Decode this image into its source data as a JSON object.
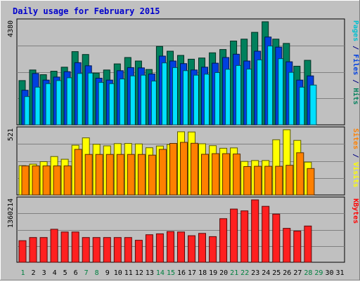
{
  "chart_data": {
    "type": "bar",
    "title": "Daily usage for February 2015",
    "days": [
      "1",
      "2",
      "3",
      "4",
      "5",
      "6",
      "7",
      "8",
      "9",
      "10",
      "11",
      "12",
      "13",
      "14",
      "15",
      "16",
      "17",
      "18",
      "19",
      "20",
      "21",
      "22",
      "23",
      "24",
      "25",
      "26",
      "27",
      "28",
      "29",
      "30",
      "31"
    ],
    "weekend_days": [
      "1",
      "7",
      "8",
      "14",
      "15",
      "21",
      "22",
      "28",
      "29"
    ],
    "panels": [
      {
        "id": "hits",
        "max_label": "4380",
        "ylim": [
          0,
          4380
        ],
        "axis_labels": [
          {
            "text": "Pages",
            "color": "#00c0d0"
          },
          {
            "text": " / ",
            "color": "#000080"
          },
          {
            "text": "Files",
            "color": "#0040e0"
          },
          {
            "text": " / ",
            "color": "#000080"
          },
          {
            "text": "Hits",
            "color": "#00805c"
          }
        ],
        "series": [
          {
            "name": "Hits",
            "color": "#00805c",
            "values": [
              1880,
              2330,
              2130,
              2280,
              2450,
              3110,
              2990,
              2200,
              2330,
              2590,
              2860,
              2710,
              2350,
              3330,
              3130,
              2950,
              2790,
              2840,
              3060,
              3200,
              3560,
              3640,
              3930,
              4380,
              3640,
              3460,
              2490,
              2740,
              null,
              null,
              null
            ]
          },
          {
            "name": "Files",
            "color": "#0040e0",
            "values": [
              1470,
              2180,
              1900,
              2030,
              2260,
              2640,
              2510,
              1980,
              1900,
              2300,
              2430,
              2420,
              2160,
              2920,
              2710,
              2600,
              2330,
              2450,
              2620,
              2860,
              3000,
              2710,
              3130,
              3730,
              3300,
              2680,
              1900,
              2080,
              null,
              null,
              null
            ]
          },
          {
            "name": "Pages",
            "color": "#00e0ff",
            "values": [
              1200,
              1600,
              1750,
              1880,
              2000,
              2180,
              2200,
              1800,
              1750,
              1950,
              2080,
              2110,
              1860,
              2630,
              2430,
              2300,
              2110,
              2150,
              2220,
              2360,
              2520,
              2370,
              2760,
              3350,
              2810,
              2230,
              1600,
              1690,
              null,
              null,
              null
            ]
          }
        ]
      },
      {
        "id": "visits",
        "max_label": "521",
        "ylim": [
          0,
          521
        ],
        "axis_labels": [
          {
            "text": "Sites",
            "color": "#ff8000"
          },
          {
            "text": " / ",
            "color": "#000080"
          },
          {
            "text": "Visits",
            "color": "#ffff00"
          }
        ],
        "series": [
          {
            "name": "Visits",
            "color": "#ffff00",
            "values": [
              234,
              246,
              266,
              307,
              285,
              397,
              456,
              405,
              392,
              410,
              411,
              408,
              377,
              391,
              403,
              505,
              503,
              409,
              394,
              373,
              376,
              268,
              275,
              275,
              441,
              521,
              436,
              262,
              null,
              null,
              null
            ]
          },
          {
            "name": "Sites",
            "color": "#ff8000",
            "values": [
              232,
              232,
              232,
              232,
              232,
              364,
              324,
              324,
              324,
              324,
              324,
              324,
              318,
              364,
              412,
              420,
              413,
              325,
              330,
              330,
              327,
              227,
              229,
              229,
              229,
              237,
              337,
              211,
              null,
              null,
              null
            ]
          }
        ]
      },
      {
        "id": "kbytes",
        "max_label": "1360214",
        "ylim": [
          0,
          1360214
        ],
        "axis_labels": [
          {
            "text": "KBytes",
            "color": "#ff0000"
          }
        ],
        "series": [
          {
            "name": "KBytes",
            "color": "#ff2020",
            "values": [
              470000,
              540000,
              540000,
              720000,
              660000,
              660000,
              540000,
              540000,
              540000,
              540000,
              540000,
              480000,
              600000,
              620000,
              670000,
              660000,
              580000,
              630000,
              560000,
              950000,
              1160000,
              1120000,
              1360214,
              1220000,
              1050000,
              740000,
              680000,
              790000,
              null,
              null,
              null
            ]
          }
        ]
      }
    ]
  }
}
